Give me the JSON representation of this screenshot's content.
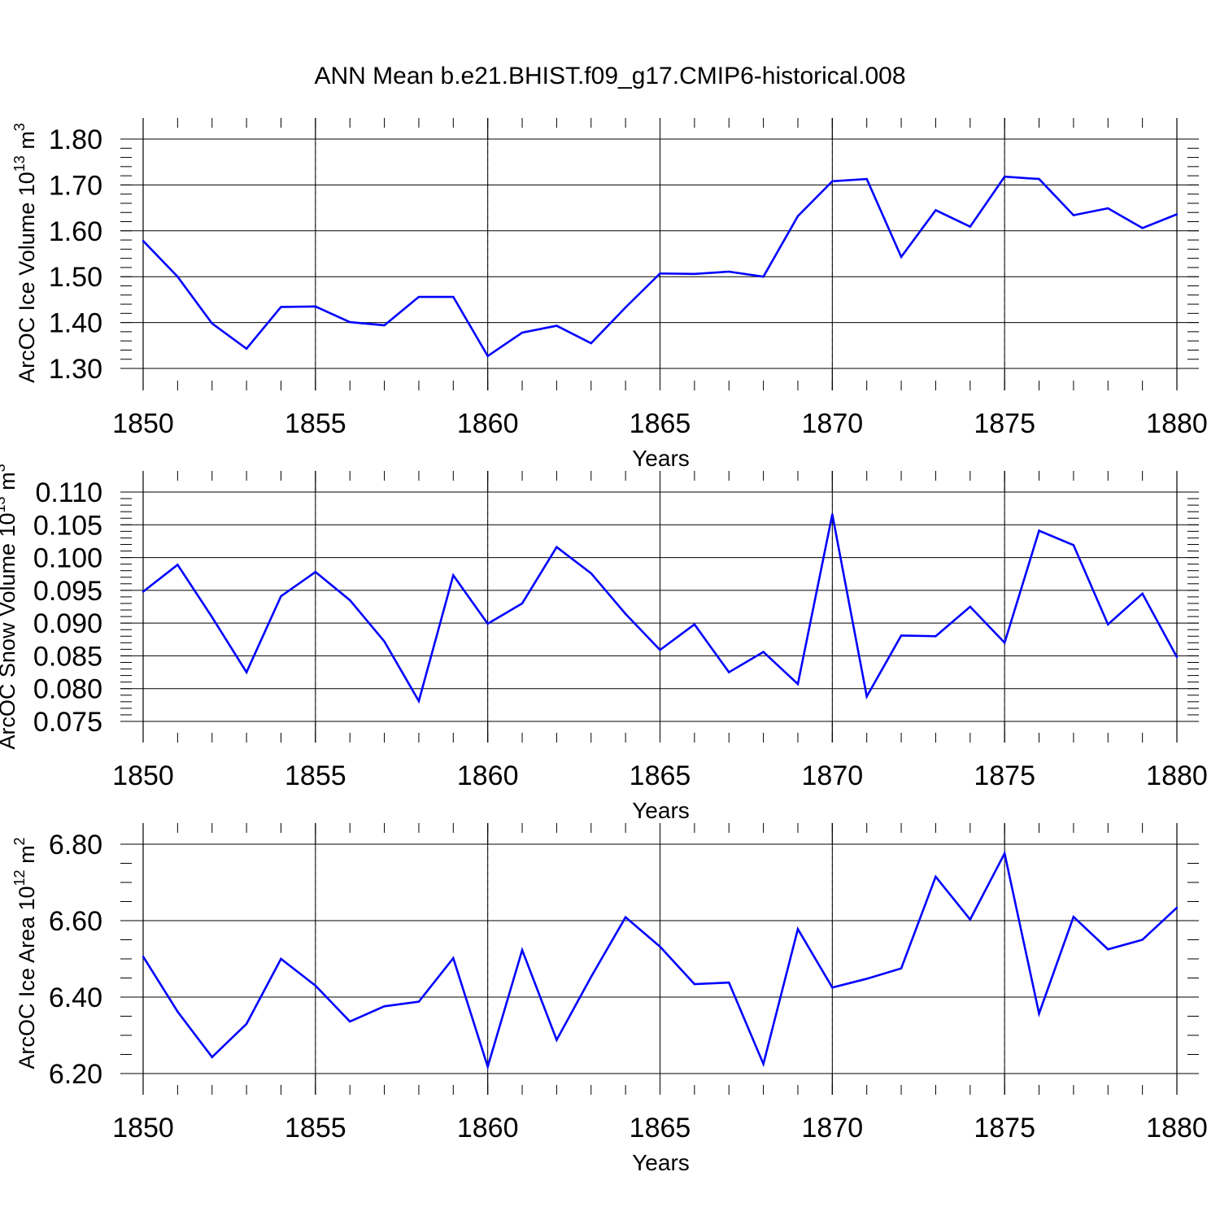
{
  "title": "ANN Mean b.e21.BHIST.f09_g17.CMIP6-historical.008",
  "line_color": "#0000ff",
  "chart_data": [
    {
      "type": "line",
      "ylabel_main": "ArcOC Ice Volume 10",
      "ylabel_sup": "13",
      "ylabel_unit": " m",
      "ylabel_unit_sup": "3",
      "xlabel": "Years",
      "xlim": [
        1850,
        1880
      ],
      "ylim": [
        1.3,
        1.8
      ],
      "y_minor_step": 0.02,
      "yticks": [
        1.3,
        1.4,
        1.5,
        1.6,
        1.7,
        1.8
      ],
      "ytick_labels": [
        "1.30",
        "1.40",
        "1.50",
        "1.60",
        "1.70",
        "1.80"
      ],
      "xticks": [
        1850,
        1855,
        1860,
        1865,
        1870,
        1875,
        1880
      ],
      "xtick_labels": [
        "1850",
        "1855",
        "1860",
        "1865",
        "1870",
        "1875",
        "1880"
      ],
      "x": [
        1850,
        1851,
        1852,
        1853,
        1854,
        1855,
        1856,
        1857,
        1858,
        1859,
        1860,
        1861,
        1862,
        1863,
        1864,
        1865,
        1866,
        1867,
        1868,
        1869,
        1870,
        1871,
        1872,
        1873,
        1874,
        1875,
        1876,
        1877,
        1878,
        1879,
        1880
      ],
      "values": [
        1.578,
        1.5,
        1.398,
        1.343,
        1.434,
        1.435,
        1.401,
        1.394,
        1.456,
        1.456,
        1.327,
        1.378,
        1.393,
        1.355,
        1.433,
        1.507,
        1.506,
        1.511,
        1.5,
        1.632,
        1.708,
        1.713,
        1.543,
        1.645,
        1.609,
        1.718,
        1.713,
        1.634,
        1.649,
        1.606,
        1.636
      ]
    },
    {
      "type": "line",
      "ylabel_main": "ArcOC Snow Volume 10",
      "ylabel_sup": "13",
      "ylabel_unit": " m",
      "ylabel_unit_sup": "3",
      "xlabel": "Years",
      "xlim": [
        1850,
        1880
      ],
      "ylim": [
        0.075,
        0.11
      ],
      "y_minor_step": 0.001,
      "yticks": [
        0.075,
        0.08,
        0.085,
        0.09,
        0.095,
        0.1,
        0.105,
        0.11
      ],
      "ytick_labels": [
        "0.075",
        "0.080",
        "0.085",
        "0.090",
        "0.095",
        "0.100",
        "0.105",
        "0.110"
      ],
      "xticks": [
        1850,
        1855,
        1860,
        1865,
        1870,
        1875,
        1880
      ],
      "xtick_labels": [
        "1850",
        "1855",
        "1860",
        "1865",
        "1870",
        "1875",
        "1880"
      ],
      "x": [
        1850,
        1851,
        1852,
        1853,
        1854,
        1855,
        1856,
        1857,
        1858,
        1859,
        1860,
        1861,
        1862,
        1863,
        1864,
        1865,
        1866,
        1867,
        1868,
        1869,
        1870,
        1871,
        1872,
        1873,
        1874,
        1875,
        1876,
        1877,
        1878,
        1879,
        1880
      ],
      "values": [
        0.0948,
        0.0989,
        0.0909,
        0.0825,
        0.0941,
        0.0978,
        0.0935,
        0.0872,
        0.0781,
        0.0973,
        0.0899,
        0.093,
        0.1016,
        0.0976,
        0.0914,
        0.0859,
        0.0898,
        0.0825,
        0.0856,
        0.0807,
        0.1066,
        0.0788,
        0.0881,
        0.088,
        0.0925,
        0.087,
        0.1041,
        0.1019,
        0.0898,
        0.0945,
        0.0848
      ]
    },
    {
      "type": "line",
      "ylabel_main": "ArcOC Ice Area 10",
      "ylabel_sup": "12",
      "ylabel_unit": " m",
      "ylabel_unit_sup": "2",
      "xlabel": "Years",
      "xlim": [
        1850,
        1880
      ],
      "ylim": [
        6.2,
        6.8
      ],
      "y_minor_step": 0.05,
      "yticks": [
        6.2,
        6.4,
        6.6,
        6.8
      ],
      "ytick_labels": [
        "6.20",
        "6.40",
        "6.60",
        "6.80"
      ],
      "xticks": [
        1850,
        1855,
        1860,
        1865,
        1870,
        1875,
        1880
      ],
      "xtick_labels": [
        "1850",
        "1855",
        "1860",
        "1865",
        "1870",
        "1875",
        "1880"
      ],
      "x": [
        1850,
        1851,
        1852,
        1853,
        1854,
        1855,
        1856,
        1857,
        1858,
        1859,
        1860,
        1861,
        1862,
        1863,
        1864,
        1865,
        1866,
        1867,
        1868,
        1869,
        1870,
        1871,
        1872,
        1873,
        1874,
        1875,
        1876,
        1877,
        1878,
        1879,
        1880
      ],
      "values": [
        6.506,
        6.362,
        6.243,
        6.33,
        6.5,
        6.43,
        6.336,
        6.376,
        6.388,
        6.502,
        6.218,
        6.523,
        6.288,
        6.453,
        6.609,
        6.532,
        6.434,
        6.438,
        6.225,
        6.578,
        6.425,
        6.448,
        6.475,
        6.715,
        6.603,
        6.776,
        6.357,
        6.61,
        6.525,
        6.55,
        6.634
      ]
    }
  ]
}
